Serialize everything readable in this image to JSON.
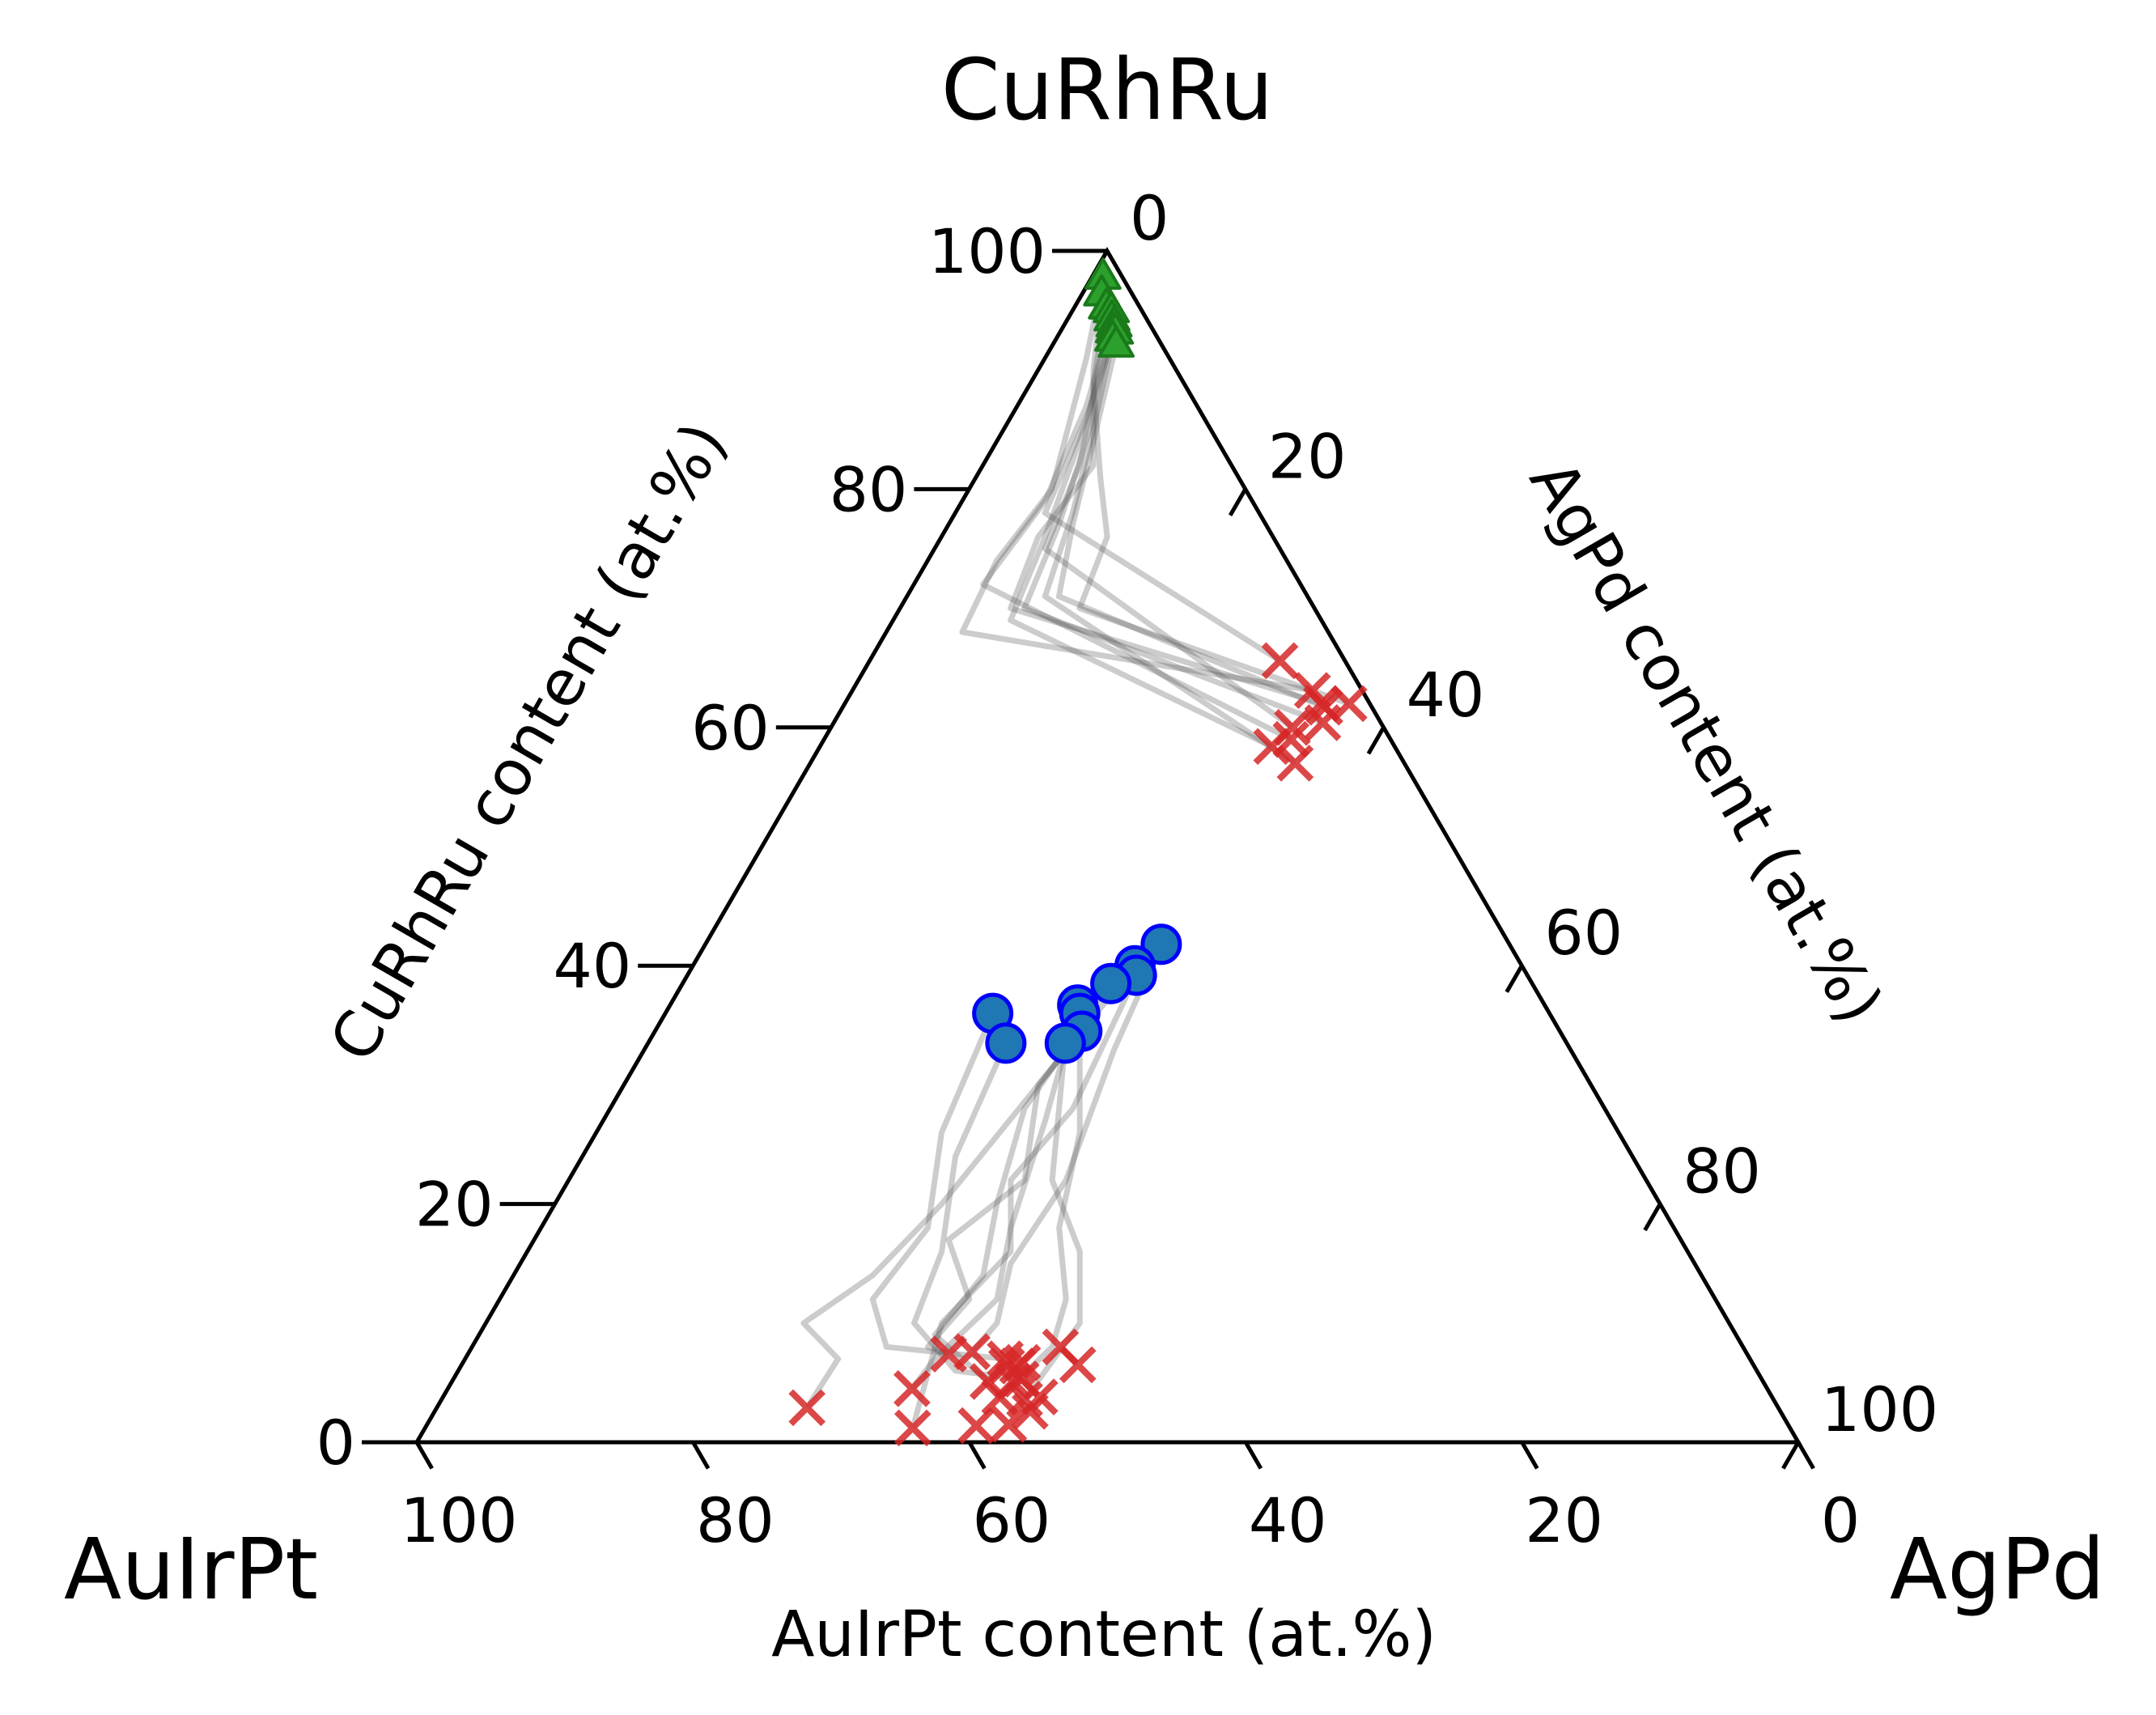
{
  "chart_data": {
    "type": "ternary-scatter",
    "corners": {
      "top": "CuRhRu",
      "left": "AuIrPt",
      "right": "AgPd"
    },
    "axes": {
      "left": {
        "label": "CuRhRu content (at.%)",
        "ticks": [
          "0",
          "20",
          "40",
          "60",
          "80",
          "100"
        ]
      },
      "right": {
        "label": "AgPd content (at.%)",
        "ticks": [
          "0",
          "20",
          "40",
          "60",
          "80",
          "100"
        ]
      },
      "bottom": {
        "label": "AuIrPt content (at.%)",
        "ticks": [
          "100",
          "80",
          "60",
          "40",
          "20",
          "0"
        ]
      }
    },
    "colors": {
      "triangle": "#2ca02c",
      "circle": "#1f77b4",
      "circle_edge": "#0000ff",
      "cross": "#d62728",
      "path": "#555555"
    },
    "series": [
      {
        "marker": "triangle",
        "points": [
          [
            0.8,
            97.8
          ],
          [
            1.4,
            96.4
          ],
          [
            2.3,
            95.3
          ],
          [
            2.8,
            95.0
          ],
          [
            3.2,
            94.3
          ],
          [
            3.6,
            93.8
          ],
          [
            3.8,
            93.3
          ],
          [
            4.0,
            93.2
          ],
          [
            4.1,
            92.6
          ],
          [
            4.6,
            92.1
          ]
        ]
      },
      {
        "marker": "circle",
        "points": [
          [
            33.0,
            41.8
          ],
          [
            32.0,
            40.0
          ],
          [
            32.5,
            39.2
          ],
          [
            31.0,
            38.5
          ],
          [
            29.5,
            36.7
          ],
          [
            23.7,
            36.0
          ],
          [
            30.0,
            36.0
          ],
          [
            30.9,
            34.5
          ],
          [
            30.2,
            33.5
          ],
          [
            25.9,
            33.5
          ]
        ]
      },
      {
        "marker": "cross",
        "points": [
          [
            29.7,
            65.6
          ],
          [
            33.3,
            63.1
          ],
          [
            34.5,
            62.0
          ],
          [
            34.9,
            61.7
          ],
          [
            36.5,
            62.0
          ],
          [
            33.4,
            60.0
          ],
          [
            33.8,
            59.0
          ],
          [
            32.7,
            58.4
          ],
          [
            35.4,
            60.4
          ],
          [
            35.1,
            57.0
          ]
        ]
      },
      {
        "marker": "cross",
        "points": [
          [
            33.6,
            4.5
          ],
          [
            26.8,
            2.9
          ],
          [
            35.3,
            1.2
          ],
          [
            38.8,
            5.1
          ],
          [
            34.8,
            7.4
          ],
          [
            36.4,
            7.6
          ],
          [
            39.1,
            7.0
          ],
          [
            39.5,
            6.4
          ],
          [
            40.6,
            5.1
          ],
          [
            40.3,
            3.8
          ],
          [
            42.2,
            3.6
          ],
          [
            41.1,
            5.3
          ],
          [
            44.6,
            6.5
          ],
          [
            42.6,
            8.0
          ],
          [
            43.2,
            3.8
          ],
          [
            39.8,
            1.4
          ],
          [
            43.1,
            2.6
          ],
          [
            42.1,
            1.5
          ],
          [
            40.3,
            6.4
          ],
          [
            40.5,
            6.7
          ]
        ]
      }
    ],
    "paths": [
      [
        [
          0.8,
          97.8
        ],
        [
          3.0,
          91.0
        ],
        [
          6.0,
          80.0
        ],
        [
          5.0,
          74.0
        ],
        [
          5.5,
          68.0
        ],
        [
          33.3,
          63.1
        ]
      ],
      [
        [
          1.4,
          96.4
        ],
        [
          4.0,
          90.0
        ],
        [
          8.0,
          82.0
        ],
        [
          7.0,
          76.0
        ],
        [
          8.0,
          70.0
        ],
        [
          34.5,
          62.0
        ]
      ],
      [
        [
          2.3,
          95.3
        ],
        [
          4.5,
          89.0
        ],
        [
          9.0,
          81.0
        ],
        [
          12.0,
          76.0
        ],
        [
          13.0,
          70.0
        ],
        [
          36.5,
          62.0
        ]
      ],
      [
        [
          2.8,
          95.0
        ],
        [
          5.0,
          88.0
        ],
        [
          7.0,
          82.0
        ],
        [
          8.0,
          75.0
        ],
        [
          33.4,
          60.0
        ]
      ],
      [
        [
          3.2,
          94.3
        ],
        [
          5.0,
          87.0
        ],
        [
          6.0,
          79.0
        ],
        [
          5.0,
          72.0
        ],
        [
          33.8,
          59.0
        ]
      ],
      [
        [
          3.6,
          93.8
        ],
        [
          6.0,
          86.0
        ],
        [
          8.0,
          77.0
        ],
        [
          9.0,
          70.0
        ],
        [
          35.4,
          60.4
        ]
      ],
      [
        [
          3.8,
          93.3
        ],
        [
          5.5,
          86.0
        ],
        [
          6.5,
          78.0
        ],
        [
          29.7,
          65.6
        ]
      ],
      [
        [
          4.0,
          93.2
        ],
        [
          6.0,
          84.0
        ],
        [
          7.5,
          76.0
        ],
        [
          8.5,
          69.0
        ],
        [
          32.7,
          58.4
        ]
      ],
      [
        [
          4.1,
          92.6
        ],
        [
          6.5,
          85.0
        ],
        [
          8.5,
          78.0
        ],
        [
          10.0,
          71.0
        ],
        [
          35.1,
          57.0
        ]
      ],
      [
        [
          4.6,
          92.1
        ],
        [
          7.0,
          84.0
        ],
        [
          9.0,
          77.0
        ],
        [
          11.0,
          71.0
        ],
        [
          34.9,
          61.7
        ]
      ],
      [
        [
          33.0,
          41.8
        ],
        [
          34.0,
          33.0
        ],
        [
          36.0,
          22.0
        ],
        [
          35.5,
          15.0
        ],
        [
          37.0,
          10.0
        ],
        [
          36.4,
          7.6
        ]
      ],
      [
        [
          32.0,
          40.0
        ],
        [
          30.0,
          30.0
        ],
        [
          33.0,
          22.0
        ],
        [
          30.0,
          17.0
        ],
        [
          34.0,
          12.0
        ],
        [
          33.0,
          8.0
        ],
        [
          34.8,
          7.4
        ]
      ],
      [
        [
          32.5,
          39.2
        ],
        [
          33.5,
          28.0
        ],
        [
          32.0,
          22.0
        ],
        [
          35.0,
          16.0
        ],
        [
          33.0,
          10.0
        ],
        [
          35.3,
          1.2
        ]
      ],
      [
        [
          31.0,
          38.5
        ],
        [
          30.0,
          28.0
        ],
        [
          32.0,
          20.0
        ],
        [
          34.0,
          14.0
        ],
        [
          33.0,
          9.0
        ],
        [
          38.8,
          5.1
        ]
      ],
      [
        [
          29.5,
          36.7
        ],
        [
          32.0,
          27.0
        ],
        [
          34.0,
          18.0
        ],
        [
          36.0,
          12.0
        ],
        [
          34.0,
          7.0
        ],
        [
          33.6,
          4.5
        ]
      ],
      [
        [
          23.7,
          36.0
        ],
        [
          25.0,
          26.0
        ],
        [
          28.0,
          18.0
        ],
        [
          27.0,
          12.0
        ],
        [
          30.0,
          8.0
        ],
        [
          39.1,
          7.0
        ]
      ],
      [
        [
          30.0,
          36.0
        ],
        [
          35.0,
          26.0
        ],
        [
          37.5,
          18.0
        ],
        [
          41.0,
          12.0
        ],
        [
          42.0,
          8.0
        ],
        [
          40.3,
          3.8
        ]
      ],
      [
        [
          30.9,
          34.5
        ],
        [
          28.0,
          20.0
        ],
        [
          26.0,
          14.0
        ],
        [
          23.0,
          10.0
        ],
        [
          27.0,
          7.0
        ],
        [
          26.8,
          2.9
        ]
      ],
      [
        [
          30.2,
          33.5
        ],
        [
          35.0,
          22.0
        ],
        [
          40.0,
          16.0
        ],
        [
          43.0,
          10.0
        ],
        [
          42.2,
          3.6
        ]
      ],
      [
        [
          25.9,
          33.5
        ],
        [
          27.0,
          24.0
        ],
        [
          30.0,
          16.0
        ],
        [
          31.0,
          10.0
        ],
        [
          36.0,
          6.0
        ],
        [
          41.1,
          5.3
        ]
      ]
    ]
  }
}
